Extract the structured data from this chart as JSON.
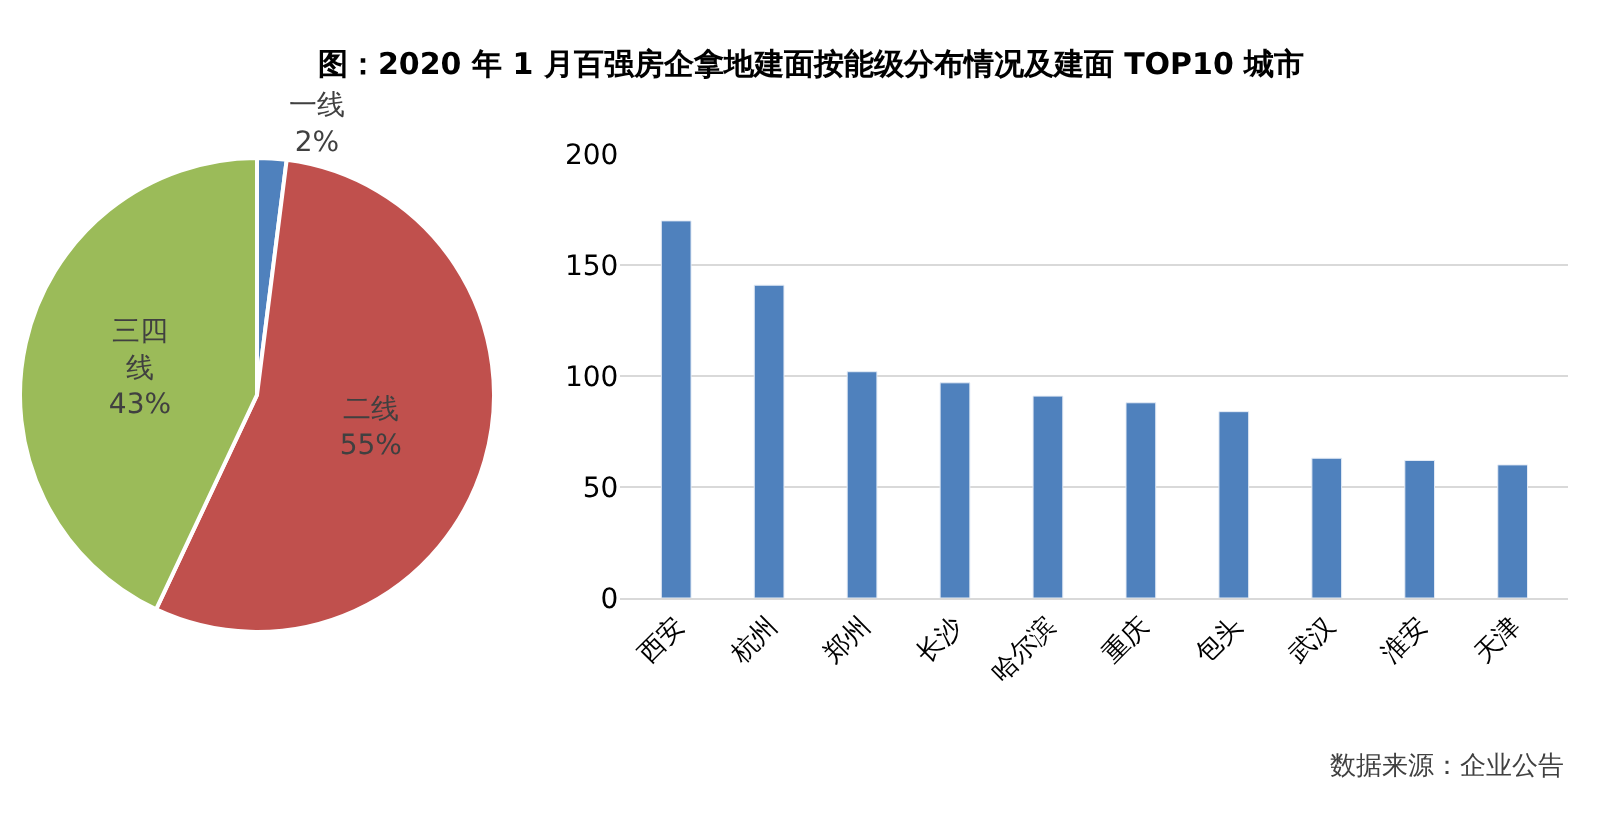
{
  "chart_data": [
    {
      "type": "pie",
      "title": "图：2020 年 1 月百强房企拿地建面按能级分布情况及建面 TOP10 城市",
      "categories": [
        "一线",
        "二线",
        "三四线"
      ],
      "values": [
        2,
        55,
        43
      ],
      "value_labels": [
        "2%",
        "55%",
        "43%"
      ],
      "colors": [
        "#4f81bd",
        "#c0504d",
        "#9bbb59"
      ]
    },
    {
      "type": "bar",
      "categories": [
        "西安",
        "杭州",
        "郑州",
        "长沙",
        "哈尔滨",
        "重庆",
        "包头",
        "武汉",
        "淮安",
        "天津"
      ],
      "values": [
        170,
        141,
        102,
        97,
        91,
        88,
        84,
        63,
        62,
        60
      ],
      "color": "#4f81bd",
      "ylim": [
        0,
        200
      ],
      "yticks": [
        0,
        50,
        100,
        150,
        200
      ],
      "grid": "y",
      "annotations": [
        "数据来源：企业公告"
      ]
    }
  ]
}
